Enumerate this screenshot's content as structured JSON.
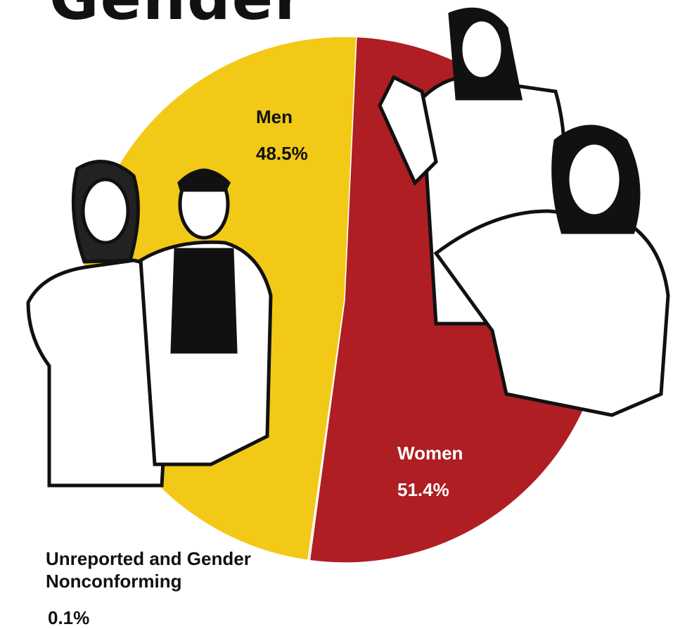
{
  "chart_data": {
    "type": "pie",
    "title": "Gender",
    "categories": [
      "Men",
      "Women",
      "Unreported and Gender Nonconforming"
    ],
    "values": [
      48.5,
      51.4,
      0.1
    ],
    "value_labels": [
      "48.5%",
      "51.4%",
      "0.1%"
    ],
    "colors": [
      "#f2c916",
      "#ae1e23",
      "#d9d9d9"
    ]
  }
}
